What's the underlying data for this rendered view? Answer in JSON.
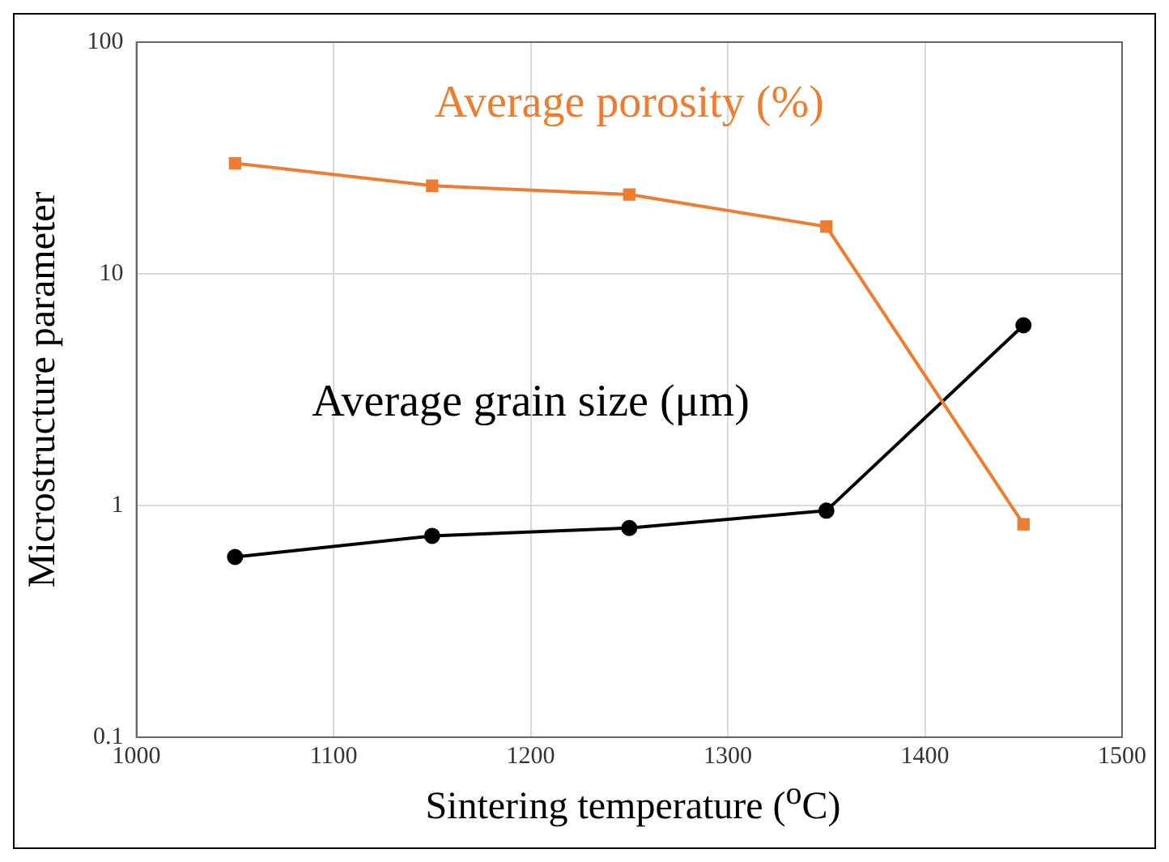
{
  "chart_data": {
    "type": "line",
    "xlabel": "Sintering temperature ($^{o}$C)",
    "ylabel": "Microstructure parameter",
    "x": [
      1050,
      1150,
      1250,
      1350,
      1450
    ],
    "xlim": [
      1000,
      1500
    ],
    "xticks": [
      1000,
      1100,
      1200,
      1300,
      1400,
      1500
    ],
    "ylim": [
      0.1,
      100
    ],
    "yticks": [
      0.1,
      1,
      10,
      100
    ],
    "log": "y",
    "grid": true,
    "line_style": "solid",
    "series": [
      {
        "name": "Average porosity (%)",
        "color": "#ed7d31",
        "marker": "square",
        "values": [
          30,
          24,
          22,
          16,
          0.83
        ]
      },
      {
        "name": "Average grain size (μm)",
        "color": "#000000",
        "marker": "circle",
        "values": [
          0.6,
          0.74,
          0.8,
          0.95,
          6
        ]
      }
    ]
  }
}
